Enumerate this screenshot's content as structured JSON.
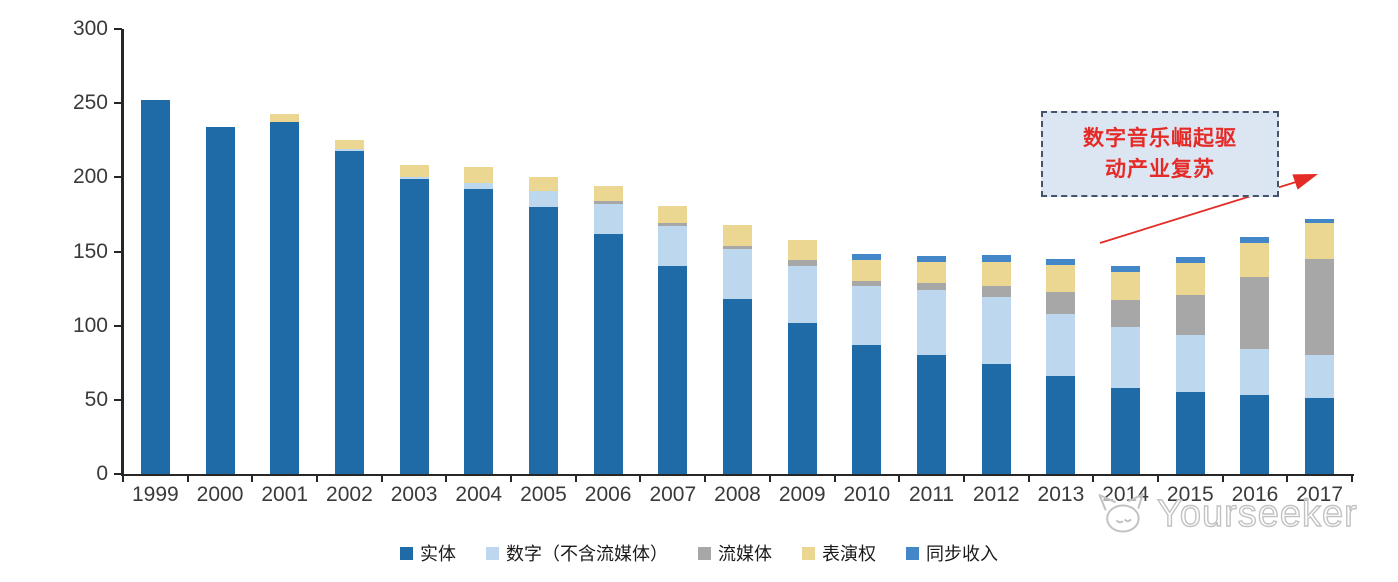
{
  "page": {
    "background": "#ffffff"
  },
  "annotation": {
    "line1": "数字音乐崛起驱",
    "line2": "动产业复苏",
    "text_color": "#e52b27",
    "border_color": "#44546A",
    "fill_color": "#dce6f3",
    "arrow_color": "#e52b27"
  },
  "watermark": {
    "text": "Yourseeker",
    "logo": "cat-logo-icon",
    "color": "#c2c2c2"
  },
  "chart_data": {
    "type": "bar",
    "stacked": true,
    "title": "",
    "xlabel": "",
    "ylabel": "",
    "ylim": [
      0,
      300
    ],
    "y_ticks": [
      "0",
      "50",
      "100",
      "150",
      "200",
      "250",
      "300"
    ],
    "grid": false,
    "legend_position": "bottom",
    "categories": [
      "1999",
      "2000",
      "2001",
      "2002",
      "2003",
      "2004",
      "2005",
      "2006",
      "2007",
      "2008",
      "2009",
      "2010",
      "2011",
      "2012",
      "2013",
      "2014",
      "2015",
      "2016",
      "2017"
    ],
    "series": [
      {
        "name": "实体",
        "color": "#1E6BA8",
        "values": [
          252,
          234,
          237,
          218,
          199,
          192,
          180,
          162,
          140,
          118,
          102,
          87,
          80,
          74,
          66,
          58,
          55,
          53,
          51
        ]
      },
      {
        "name": "数字（不含流媒体）",
        "color": "#BDD7EE",
        "values": [
          0,
          0,
          0,
          1,
          1,
          4,
          11,
          20,
          27,
          34,
          38,
          40,
          44,
          45,
          42,
          41,
          39,
          31,
          29
        ]
      },
      {
        "name": "流媒体",
        "color": "#A7A7A7",
        "values": [
          0,
          0,
          0,
          0,
          0,
          0,
          0,
          2,
          2,
          2,
          4,
          3,
          5,
          8,
          15,
          18,
          27,
          49,
          65
        ]
      },
      {
        "name": "表演权",
        "color": "#EBD792",
        "values": [
          0,
          0,
          6,
          6,
          8,
          11,
          9,
          10,
          12,
          14,
          14,
          14,
          14,
          16,
          18,
          19,
          21,
          23,
          24
        ]
      },
      {
        "name": "同步收入",
        "color": "#4487C8",
        "values": [
          0,
          0,
          0,
          0,
          0,
          0,
          0,
          0,
          0,
          0,
          0,
          4,
          4,
          4.5,
          4,
          4,
          4,
          4,
          3
        ]
      }
    ]
  }
}
